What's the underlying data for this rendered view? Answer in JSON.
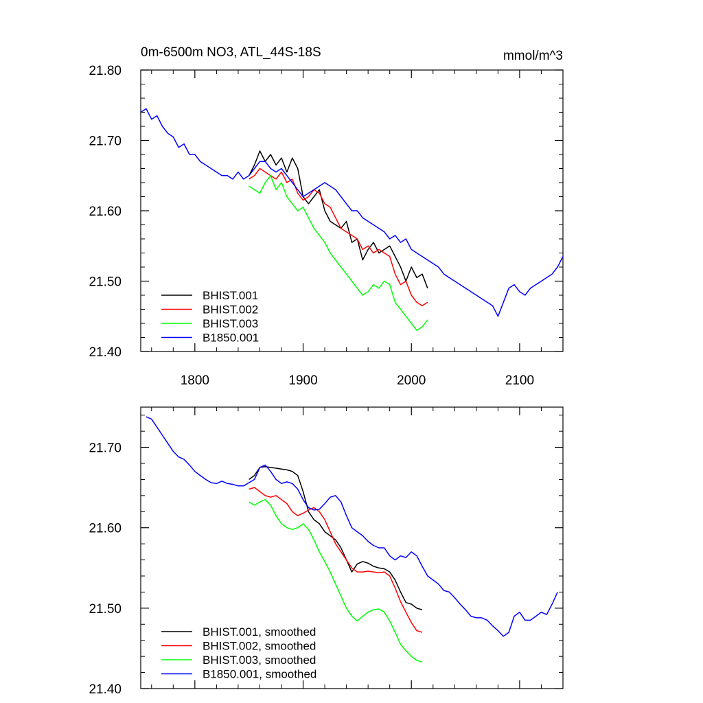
{
  "chart_data": [
    {
      "type": "line",
      "title": "0m-6500m NO3, ATL_44S-18S",
      "units": "mmol/m^3",
      "xlim": [
        1750,
        2140
      ],
      "ylim": [
        21.4,
        21.8
      ],
      "xticks": [
        1800,
        1900,
        2000,
        2100
      ],
      "xtick_labels": [
        "1800",
        "1900",
        "2000",
        "2100"
      ],
      "yticks": [
        21.4,
        21.5,
        21.6,
        21.7,
        21.8
      ],
      "ytick_labels": [
        "21.40",
        "21.50",
        "21.60",
        "21.70",
        "21.80"
      ],
      "legend_position": "bottom-left",
      "series": [
        {
          "name": "BHIST.001",
          "color": "#000000",
          "x": [
            1850,
            1855,
            1860,
            1865,
            1870,
            1875,
            1880,
            1885,
            1890,
            1895,
            1900,
            1905,
            1910,
            1915,
            1920,
            1925,
            1930,
            1935,
            1940,
            1945,
            1950,
            1955,
            1960,
            1965,
            1970,
            1975,
            1980,
            1985,
            1990,
            1995,
            2000,
            2005,
            2010,
            2015
          ],
          "y": [
            21.65,
            21.665,
            21.685,
            21.67,
            21.68,
            21.665,
            21.675,
            21.655,
            21.675,
            21.66,
            21.62,
            21.61,
            21.62,
            21.63,
            21.6,
            21.585,
            21.58,
            21.575,
            21.585,
            21.555,
            21.56,
            21.53,
            21.545,
            21.555,
            21.54,
            21.545,
            21.55,
            21.535,
            21.52,
            21.5,
            21.52,
            21.505,
            21.51,
            21.49
          ]
        },
        {
          "name": "BHIST.002",
          "color": "#ff0000",
          "x": [
            1850,
            1855,
            1860,
            1865,
            1870,
            1875,
            1880,
            1885,
            1890,
            1895,
            1900,
            1905,
            1910,
            1915,
            1920,
            1925,
            1930,
            1935,
            1940,
            1945,
            1950,
            1955,
            1960,
            1965,
            1970,
            1975,
            1980,
            1985,
            1990,
            1995,
            2000,
            2005,
            2010,
            2015
          ],
          "y": [
            21.645,
            21.65,
            21.66,
            21.655,
            21.65,
            21.645,
            21.655,
            21.64,
            21.645,
            21.625,
            21.615,
            21.62,
            21.63,
            21.625,
            21.61,
            21.605,
            21.59,
            21.575,
            21.57,
            21.565,
            21.56,
            21.545,
            21.55,
            21.54,
            21.545,
            21.54,
            21.535,
            21.51,
            21.495,
            21.5,
            21.48,
            21.47,
            21.465,
            21.47
          ]
        },
        {
          "name": "BHIST.003",
          "color": "#00ff00",
          "x": [
            1850,
            1855,
            1860,
            1865,
            1870,
            1875,
            1880,
            1885,
            1890,
            1895,
            1900,
            1905,
            1910,
            1915,
            1920,
            1925,
            1930,
            1935,
            1940,
            1945,
            1950,
            1955,
            1960,
            1965,
            1970,
            1975,
            1980,
            1985,
            1990,
            1995,
            2000,
            2005,
            2010,
            2015
          ],
          "y": [
            21.635,
            21.63,
            21.625,
            21.64,
            21.65,
            21.63,
            21.64,
            21.62,
            21.61,
            21.6,
            21.605,
            21.59,
            21.575,
            21.565,
            21.555,
            21.54,
            21.53,
            21.52,
            21.51,
            21.5,
            21.49,
            21.48,
            21.485,
            21.495,
            21.49,
            21.5,
            21.495,
            21.47,
            21.46,
            21.45,
            21.44,
            21.43,
            21.435,
            21.445
          ]
        },
        {
          "name": "B1850.001",
          "color": "#0000ff",
          "x": [
            1750,
            1755,
            1760,
            1765,
            1770,
            1775,
            1780,
            1785,
            1790,
            1795,
            1800,
            1805,
            1810,
            1815,
            1820,
            1825,
            1830,
            1835,
            1840,
            1845,
            1850,
            1855,
            1860,
            1865,
            1870,
            1875,
            1880,
            1885,
            1890,
            1895,
            1900,
            1905,
            1910,
            1915,
            1920,
            1925,
            1930,
            1935,
            1940,
            1945,
            1950,
            1955,
            1960,
            1965,
            1970,
            1975,
            1980,
            1985,
            1990,
            1995,
            2000,
            2005,
            2010,
            2015,
            2020,
            2025,
            2030,
            2035,
            2040,
            2045,
            2050,
            2055,
            2060,
            2065,
            2070,
            2075,
            2080,
            2085,
            2090,
            2095,
            2100,
            2105,
            2110,
            2115,
            2120,
            2125,
            2130,
            2135,
            2140
          ],
          "y": [
            21.74,
            21.745,
            21.73,
            21.735,
            21.72,
            21.71,
            21.705,
            21.69,
            21.695,
            21.68,
            21.68,
            21.67,
            21.665,
            21.66,
            21.655,
            21.65,
            21.65,
            21.645,
            21.655,
            21.645,
            21.65,
            21.66,
            21.67,
            21.67,
            21.66,
            21.655,
            21.66,
            21.65,
            21.64,
            21.63,
            21.62,
            21.625,
            21.63,
            21.635,
            21.64,
            21.635,
            21.63,
            21.62,
            21.61,
            21.6,
            21.6,
            21.59,
            21.585,
            21.58,
            21.575,
            21.57,
            21.56,
            21.565,
            21.555,
            21.56,
            21.545,
            21.54,
            21.535,
            21.53,
            21.525,
            21.52,
            21.51,
            21.505,
            21.5,
            21.495,
            21.49,
            21.485,
            21.48,
            21.475,
            21.47,
            21.465,
            21.45,
            21.47,
            21.49,
            21.495,
            21.485,
            21.48,
            21.49,
            21.495,
            21.5,
            21.505,
            21.51,
            21.52,
            21.535
          ]
        }
      ]
    },
    {
      "type": "line",
      "title": "",
      "units": "",
      "xlim": [
        1750,
        2140
      ],
      "ylim": [
        21.4,
        21.75
      ],
      "xticks": [
        1800,
        1900,
        2000,
        2100
      ],
      "xtick_labels": [],
      "yticks": [
        21.4,
        21.5,
        21.6,
        21.7
      ],
      "ytick_labels": [
        "21.40",
        "21.50",
        "21.60",
        "21.70"
      ],
      "legend_position": "bottom-left",
      "series": [
        {
          "name": "BHIST.001, smoothed",
          "color": "#000000",
          "x": [
            1850,
            1855,
            1860,
            1865,
            1870,
            1875,
            1880,
            1885,
            1890,
            1895,
            1900,
            1905,
            1910,
            1915,
            1920,
            1925,
            1930,
            1935,
            1940,
            1945,
            1950,
            1955,
            1960,
            1965,
            1970,
            1975,
            1980,
            1985,
            1990,
            1995,
            2000,
            2005,
            2010
          ],
          "y": [
            21.66,
            21.665,
            21.675,
            21.676,
            21.675,
            21.674,
            21.673,
            21.672,
            21.67,
            21.665,
            21.645,
            21.62,
            21.61,
            21.605,
            21.595,
            21.59,
            21.585,
            21.575,
            21.56,
            21.545,
            21.555,
            21.558,
            21.556,
            21.552,
            21.55,
            21.549,
            21.545,
            21.535,
            21.52,
            21.507,
            21.505,
            21.5,
            21.498
          ]
        },
        {
          "name": "BHIST.002, smoothed",
          "color": "#ff0000",
          "x": [
            1850,
            1855,
            1860,
            1865,
            1870,
            1875,
            1880,
            1885,
            1890,
            1895,
            1900,
            1905,
            1910,
            1915,
            1920,
            1925,
            1930,
            1935,
            1940,
            1945,
            1950,
            1955,
            1960,
            1965,
            1970,
            1975,
            1980,
            1985,
            1990,
            1995,
            2000,
            2005,
            2010
          ],
          "y": [
            21.648,
            21.65,
            21.645,
            21.64,
            21.638,
            21.64,
            21.635,
            21.63,
            21.62,
            21.615,
            21.618,
            21.622,
            21.625,
            21.62,
            21.61,
            21.595,
            21.58,
            21.57,
            21.56,
            21.55,
            21.545,
            21.545,
            21.546,
            21.545,
            21.544,
            21.545,
            21.54,
            21.525,
            21.508,
            21.495,
            21.482,
            21.472,
            21.47
          ]
        },
        {
          "name": "BHIST.003, smoothed",
          "color": "#00ff00",
          "x": [
            1850,
            1855,
            1860,
            1865,
            1870,
            1875,
            1880,
            1885,
            1890,
            1895,
            1900,
            1905,
            1910,
            1915,
            1920,
            1925,
            1930,
            1935,
            1940,
            1945,
            1950,
            1955,
            1960,
            1965,
            1970,
            1975,
            1980,
            1985,
            1990,
            1995,
            2000,
            2005,
            2010
          ],
          "y": [
            21.632,
            21.628,
            21.632,
            21.635,
            21.628,
            21.615,
            21.605,
            21.6,
            21.598,
            21.6,
            21.605,
            21.598,
            21.585,
            21.57,
            21.558,
            21.545,
            21.53,
            21.515,
            21.5,
            21.49,
            21.484,
            21.49,
            21.495,
            21.498,
            21.499,
            21.495,
            21.484,
            21.47,
            21.455,
            21.447,
            21.44,
            21.435,
            21.433
          ]
        },
        {
          "name": "B1850.001, smoothed",
          "color": "#0000ff",
          "x": [
            1755,
            1760,
            1765,
            1770,
            1775,
            1780,
            1785,
            1790,
            1795,
            1800,
            1805,
            1810,
            1815,
            1820,
            1825,
            1830,
            1835,
            1840,
            1845,
            1850,
            1855,
            1860,
            1865,
            1870,
            1875,
            1880,
            1885,
            1890,
            1895,
            1900,
            1905,
            1910,
            1915,
            1920,
            1925,
            1930,
            1935,
            1940,
            1945,
            1950,
            1955,
            1960,
            1965,
            1970,
            1975,
            1980,
            1985,
            1990,
            1995,
            2000,
            2005,
            2010,
            2015,
            2020,
            2025,
            2030,
            2035,
            2040,
            2045,
            2050,
            2055,
            2060,
            2065,
            2070,
            2075,
            2080,
            2085,
            2090,
            2095,
            2100,
            2105,
            2110,
            2115,
            2120,
            2125,
            2130,
            2135
          ],
          "y": [
            21.738,
            21.735,
            21.725,
            21.715,
            21.705,
            21.695,
            21.688,
            21.685,
            21.678,
            21.67,
            21.665,
            21.66,
            21.656,
            21.655,
            21.658,
            21.655,
            21.654,
            21.652,
            21.652,
            21.656,
            21.66,
            21.675,
            21.678,
            21.67,
            21.66,
            21.655,
            21.657,
            21.655,
            21.648,
            21.635,
            21.625,
            21.622,
            21.623,
            21.63,
            21.638,
            21.64,
            21.632,
            21.615,
            21.6,
            21.595,
            21.59,
            21.583,
            21.578,
            21.575,
            21.575,
            21.565,
            21.56,
            21.565,
            21.563,
            21.57,
            21.565,
            21.552,
            21.54,
            21.535,
            21.53,
            21.522,
            21.52,
            21.513,
            21.505,
            21.498,
            21.49,
            21.488,
            21.488,
            21.485,
            21.478,
            21.472,
            21.465,
            21.47,
            21.49,
            21.495,
            21.485,
            21.485,
            21.49,
            21.495,
            21.492,
            21.505,
            21.52
          ]
        }
      ]
    }
  ]
}
